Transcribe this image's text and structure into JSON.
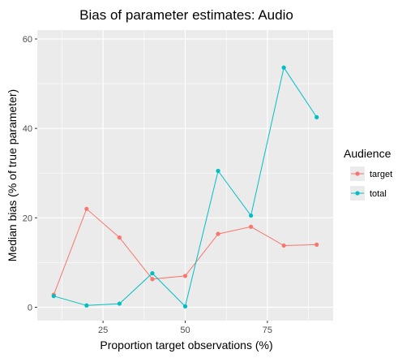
{
  "chart_data": {
    "type": "line",
    "title": "Bias of parameter estimates: Audio",
    "xlabel": "Proportion target observations (%)",
    "ylabel": "Median bias (% of true parameter)",
    "xlim": [
      5,
      95
    ],
    "ylim": [
      -3,
      62
    ],
    "x_ticks": [
      25,
      50,
      75
    ],
    "y_ticks": [
      0,
      20,
      40,
      60
    ],
    "grid": true,
    "legend": {
      "title": "Audience",
      "position": "right"
    },
    "x": [
      10,
      20,
      30,
      40,
      50,
      60,
      70,
      80,
      90
    ],
    "series": [
      {
        "name": "target",
        "color": "#F8766D",
        "values": [
          2.8,
          22.0,
          15.6,
          6.3,
          7.0,
          16.4,
          18.0,
          13.8,
          14.0
        ]
      },
      {
        "name": "total",
        "color": "#00BFC4",
        "values": [
          2.5,
          0.4,
          0.8,
          7.6,
          0.2,
          30.5,
          20.5,
          53.6,
          42.5
        ]
      }
    ]
  }
}
